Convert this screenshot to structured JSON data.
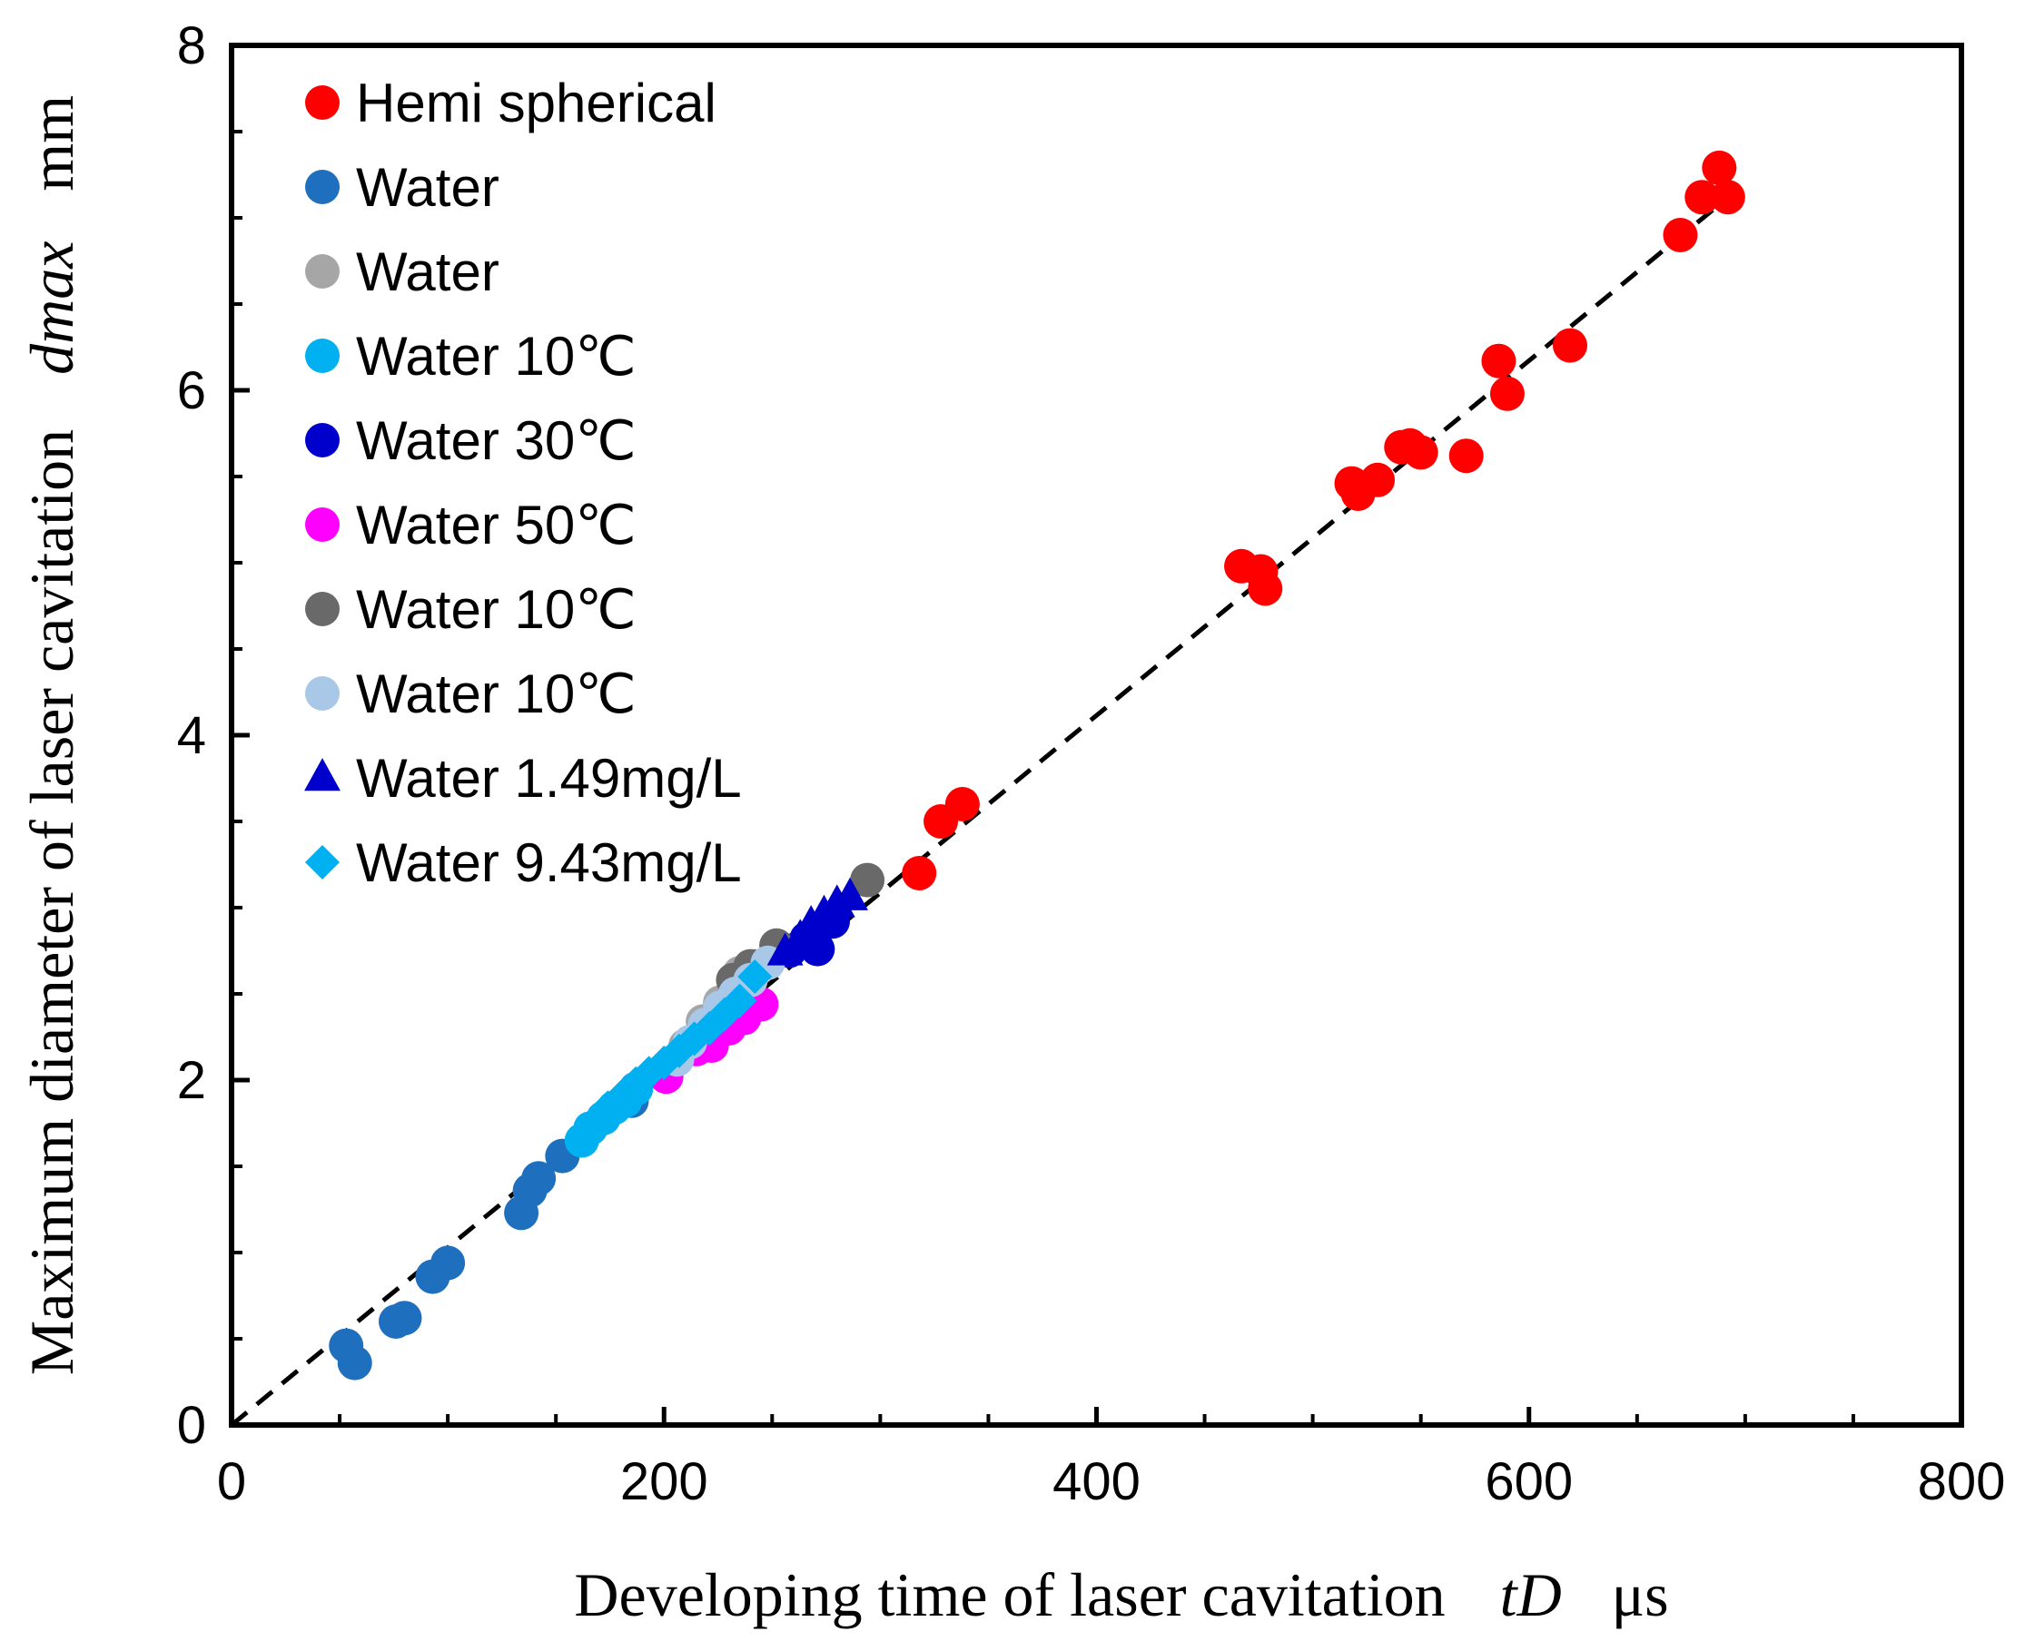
{
  "chart_data": {
    "type": "scatter",
    "xlabel": "Developing time of laser cavitation",
    "xlabel_symbol": "t",
    "xlabel_subscript": "D",
    "xlabel_unit": "μs",
    "ylabel": "Maximum diameter of laser cavitation",
    "ylabel_symbol": "d",
    "ylabel_subscript": "max",
    "ylabel_unit": "mm",
    "xlim": [
      0,
      800
    ],
    "ylim": [
      0,
      8
    ],
    "x_ticks": [
      0,
      200,
      400,
      600,
      800
    ],
    "y_ticks": [
      0,
      2,
      4,
      6,
      8
    ],
    "x_minor_step": 50,
    "y_minor_step": 0.5,
    "grid": false,
    "legend_position": "top-left",
    "fit_line": {
      "x": [
        0,
        700
      ],
      "y": [
        0,
        7.2
      ],
      "style": "dashed"
    },
    "series": [
      {
        "name": "Hemi spherical",
        "color": "#ff0000",
        "marker": "circle",
        "x": [
          318,
          328,
          338,
          467,
          476,
          478,
          518,
          521,
          530,
          541,
          545,
          550,
          571,
          586,
          590,
          619,
          670,
          680,
          688,
          692
        ],
        "y": [
          3.2,
          3.5,
          3.6,
          4.98,
          4.95,
          4.85,
          5.46,
          5.4,
          5.48,
          5.67,
          5.68,
          5.64,
          5.62,
          6.17,
          5.98,
          6.26,
          6.9,
          7.12,
          7.29,
          7.12
        ]
      },
      {
        "name": "Water",
        "color": "#1f6fbf",
        "marker": "circle",
        "x": [
          53,
          57,
          76,
          80,
          93,
          100,
          134,
          138,
          142,
          153,
          185
        ],
        "y": [
          0.46,
          0.36,
          0.6,
          0.62,
          0.86,
          0.94,
          1.23,
          1.36,
          1.43,
          1.56,
          1.88
        ]
      },
      {
        "name": "Water",
        "color": "#a6a6a6",
        "marker": "circle",
        "x": [
          210,
          218,
          226,
          235,
          242
        ],
        "y": [
          2.2,
          2.34,
          2.45,
          2.62,
          2.66
        ]
      },
      {
        "name": "Water 10℃",
        "color": "#00b0f0",
        "marker": "circle",
        "x": [
          162,
          166,
          172,
          177,
          182,
          187
        ],
        "y": [
          1.65,
          1.72,
          1.78,
          1.84,
          1.88,
          1.95
        ]
      },
      {
        "name": "Water 30℃",
        "color": "#0000cc",
        "marker": "circle",
        "x": [
          258,
          266,
          271,
          278
        ],
        "y": [
          2.75,
          2.82,
          2.76,
          2.92
        ]
      },
      {
        "name": "Water 50℃",
        "color": "#ff00ff",
        "marker": "circle",
        "x": [
          201,
          215,
          222,
          230,
          237,
          245
        ],
        "y": [
          2.02,
          2.18,
          2.2,
          2.3,
          2.36,
          2.44
        ]
      },
      {
        "name": "Water 10℃",
        "color": "#696969",
        "marker": "circle",
        "x": [
          232,
          240,
          252,
          294
        ],
        "y": [
          2.58,
          2.66,
          2.78,
          3.16
        ]
      },
      {
        "name": "Water 10℃",
        "color": "#a9c8e8",
        "marker": "circle",
        "x": [
          206,
          212,
          219,
          226,
          233,
          240,
          248
        ],
        "y": [
          2.12,
          2.22,
          2.32,
          2.42,
          2.5,
          2.58,
          2.68
        ]
      },
      {
        "name": "Water 1.49mg/L",
        "color": "#0000cc",
        "marker": "triangle",
        "x": [
          256,
          263,
          268,
          274,
          280,
          286
        ],
        "y": [
          2.74,
          2.82,
          2.9,
          2.96,
          3.02,
          3.06
        ]
      },
      {
        "name": "Water 9.43mg/L",
        "color": "#00b0f0",
        "marker": "diamond",
        "x": [
          168,
          174,
          180,
          187,
          193,
          200,
          207,
          214,
          221,
          228,
          235,
          242
        ],
        "y": [
          1.76,
          1.84,
          1.9,
          1.98,
          2.04,
          2.1,
          2.17,
          2.24,
          2.3,
          2.38,
          2.46,
          2.6
        ]
      }
    ]
  }
}
